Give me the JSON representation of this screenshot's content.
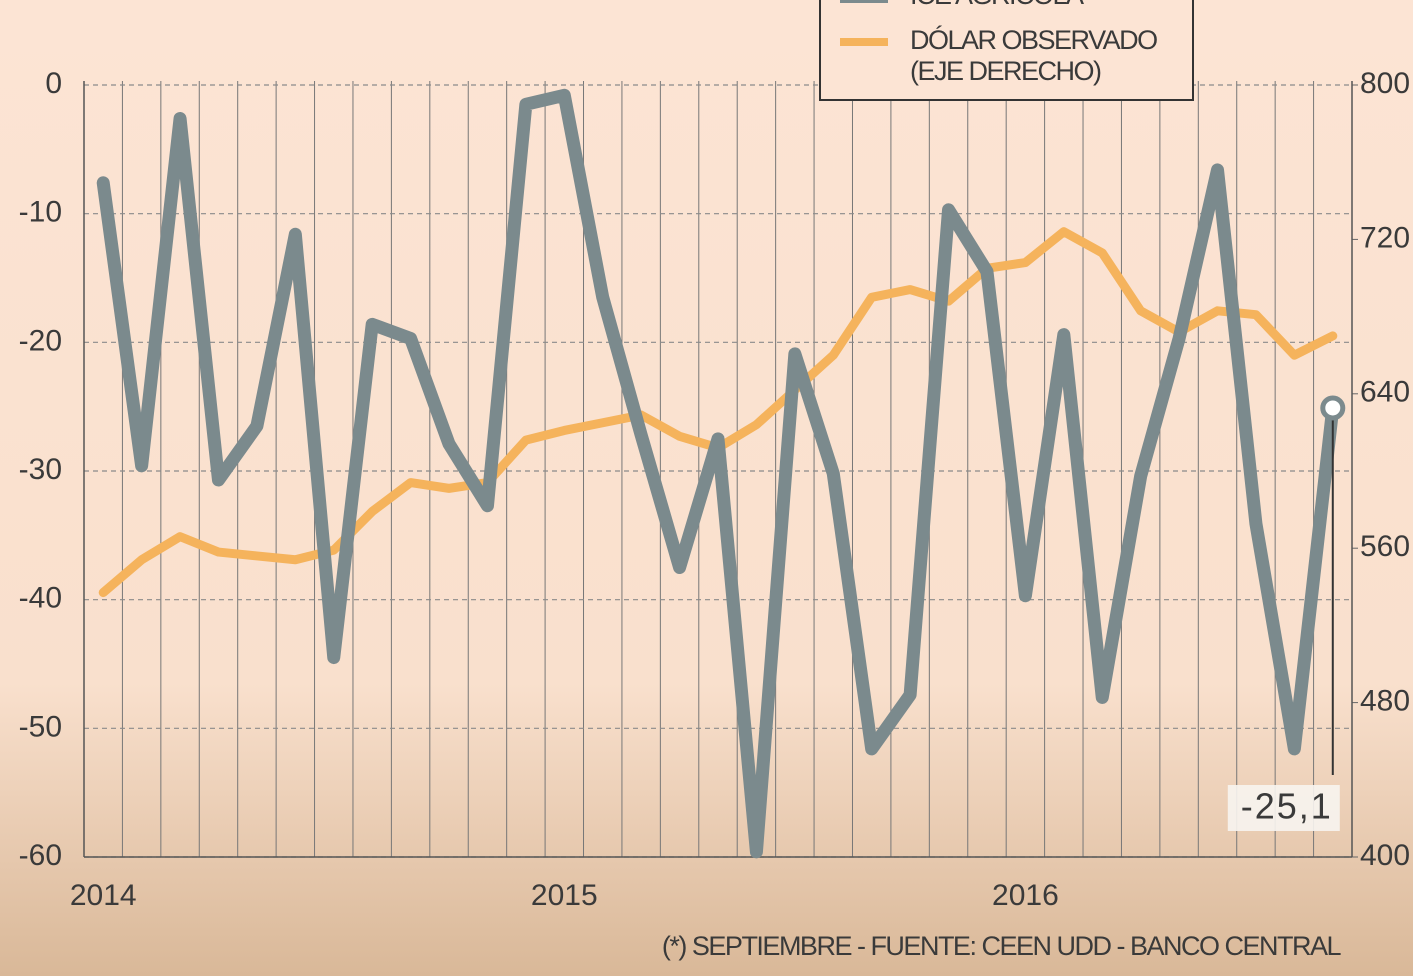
{
  "chart_data": {
    "type": "line",
    "categories": [
      "2014",
      null,
      null,
      null,
      null,
      null,
      null,
      null,
      null,
      null,
      null,
      null,
      "2015",
      null,
      null,
      null,
      null,
      null,
      null,
      null,
      null,
      null,
      null,
      null,
      "2016",
      null,
      null,
      null,
      null,
      null,
      null,
      null,
      null
    ],
    "series": [
      {
        "name": "ICE AGRÍCOLA",
        "color": "#7b8a8d",
        "values": [
          -7.6,
          -29.6,
          -2.6,
          -30.7,
          -26.5,
          -11.6,
          -44.5,
          -18.6,
          -19.7,
          -27.9,
          -32.7,
          -1.5,
          -0.8,
          -16.5,
          -27.2,
          -37.5,
          -27.5,
          -59.6,
          -20.9,
          -30.2,
          -51.6,
          -47.4,
          -9.7,
          -14.5,
          -39.7,
          -19.4,
          -47.6,
          -30.4,
          -19.7,
          -6.6,
          -34.1,
          -51.6,
          -25.1
        ],
        "value_labels": [
          null,
          null,
          null,
          null,
          null,
          null,
          null,
          null,
          null,
          null,
          null,
          null,
          null,
          null,
          null,
          null,
          null,
          null,
          null,
          null,
          null,
          null,
          null,
          null,
          null,
          null,
          null,
          null,
          null,
          null,
          null,
          null,
          "-25,1"
        ]
      },
      {
        "name": "DÓLAR OBSERVADO",
        "legend_note": "(EJE DERECHO)",
        "color": "#f5b35c",
        "axis": "y2",
        "values": [
          537,
          554,
          566,
          558,
          556,
          554,
          559,
          579,
          594,
          591,
          594,
          616,
          621,
          625,
          629,
          618,
          612,
          624,
          642,
          660,
          690,
          694,
          688,
          705,
          708,
          724,
          713,
          683,
          672,
          683,
          681,
          660,
          670
        ]
      }
    ],
    "ylim": [
      -60,
      0
    ],
    "yticks": [
      0,
      -10,
      -20,
      -30,
      -40,
      -50,
      -60
    ],
    "y2lim": [
      400,
      800
    ],
    "y2ticks": [
      800,
      720,
      640,
      560,
      480,
      400
    ],
    "grid": true,
    "footnote": "(*) SEPTIEMBRE - FUENTE: CEEN UDD - BANCO CENTRAL"
  }
}
